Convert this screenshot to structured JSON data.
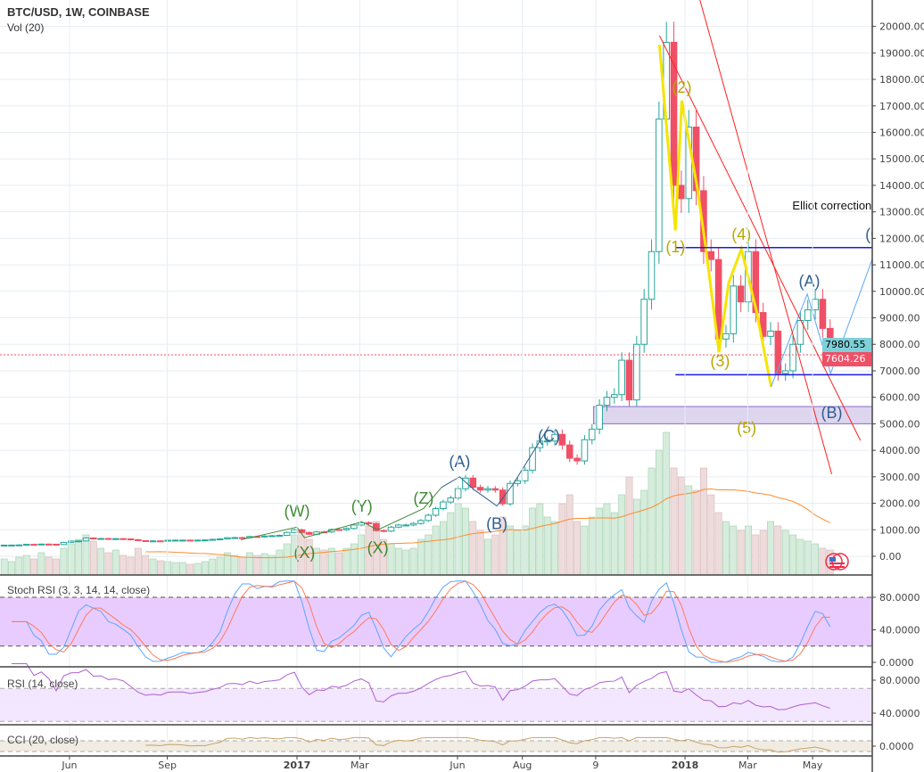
{
  "header": {
    "symbol": "BTC/USD, 1W, COINBASE",
    "volume_label": "Vol (20)"
  },
  "panels": {
    "stoch": "Stoch RSI (3, 3, 14, 14, close)",
    "rsi": "RSI (14, close)",
    "cci": "CCI (20, close)"
  },
  "price_tags": {
    "last_close": "7604.26",
    "last_color": "#ef5066",
    "line_value": "7980.55",
    "line_color": "#7fcfd8"
  },
  "colors": {
    "up": "#26a69a",
    "down": "#ef5066",
    "grid": "#e6edf3",
    "yellow": "#f5e400",
    "wave_green": "#3e8a33",
    "wave_blue": "#2f5f8f",
    "wave_yellow": "#b9a800",
    "channel": "#ff2020",
    "level": "#1a1ae0",
    "zone": "#d6cbeb",
    "stoch_k": "#5aa7ff",
    "stoch_d": "#ff7a59",
    "rsi": "#b05fd0",
    "cci": "#c8a46a",
    "vol_ma": "#ff8c2e"
  },
  "chart_data": {
    "type": "candlestick",
    "title": "BTC/USD, 1W, COINBASE",
    "interval": "1W",
    "first_week": "2016-03-28",
    "close": [
      420,
      422,
      428,
      450,
      445,
      460,
      455,
      443,
      525,
      575,
      580,
      690,
      660,
      670,
      650,
      665,
      655,
      625,
      590,
      570,
      580,
      575,
      605,
      608,
      608,
      600,
      610,
      617,
      638,
      655,
      700,
      705,
      700,
      745,
      735,
      765,
      775,
      790,
      900,
      1000,
      900,
      830,
      920,
      915,
      1010,
      1000,
      1050,
      1180,
      1270,
      1230,
      970,
      950,
      1100,
      1180,
      1180,
      1240,
      1350,
      1550,
      1800,
      2050,
      2200,
      2550,
      2950,
      2600,
      2500,
      2550,
      2500,
      1980,
      2750,
      2850,
      3250,
      4100,
      4350,
      4350,
      4600,
      4200,
      3700,
      3600,
      4400,
      4800,
      5700,
      6000,
      6100,
      7400,
      5900,
      8000,
      9700,
      11500,
      16500,
      19400,
      14000,
      13500,
      16200,
      13800,
      11500,
      11200,
      8200,
      8400,
      10200,
      9600,
      11500,
      9200,
      8300,
      8500,
      6900,
      7000,
      8000,
      8900,
      9300,
      9700,
      8600,
      7604.26
    ],
    "volume": [
      18,
      15,
      20,
      22,
      18,
      25,
      20,
      18,
      30,
      35,
      40,
      45,
      38,
      30,
      25,
      28,
      22,
      20,
      30,
      22,
      18,
      16,
      15,
      14,
      14,
      12,
      13,
      15,
      18,
      20,
      25,
      22,
      20,
      25,
      22,
      24,
      22,
      28,
      35,
      45,
      50,
      40,
      30,
      28,
      30,
      25,
      30,
      35,
      45,
      55,
      60,
      40,
      35,
      30,
      28,
      30,
      40,
      45,
      55,
      60,
      70,
      80,
      75,
      60,
      50,
      40,
      45,
      65,
      55,
      50,
      55,
      75,
      80,
      65,
      60,
      80,
      90,
      60,
      55,
      65,
      75,
      80,
      70,
      90,
      110,
      85,
      95,
      120,
      140,
      160,
      120,
      110,
      100,
      95,
      120,
      90,
      70,
      60,
      55,
      50,
      55,
      45,
      50,
      60,
      55,
      50,
      45,
      40,
      38,
      35,
      30,
      28
    ],
    "ylim": [
      0,
      21000
    ],
    "y_ticks": [
      "0.00",
      "1000.00",
      "2000.00",
      "3000.00",
      "4000.00",
      "5000.00",
      "6000.00",
      "7000.00",
      "8000.00",
      "9000.00",
      "10000.00",
      "11000.00",
      "12000.00",
      "13000.00",
      "14000.00",
      "15000.00",
      "16000.00",
      "17000.00",
      "18000.00",
      "19000.00",
      "20000.00"
    ],
    "x_ticks": [
      {
        "label": "Jun",
        "date": "2016-06-01"
      },
      {
        "label": "Sep",
        "date": "2016-09-01"
      },
      {
        "label": "2017",
        "date": "2017-01-01",
        "bold": true
      },
      {
        "label": "Mar",
        "date": "2017-03-01"
      },
      {
        "label": "Jun",
        "date": "2017-06-01"
      },
      {
        "label": "Aug",
        "date": "2017-08-01"
      },
      {
        "label": "9",
        "date": "2017-10-09"
      },
      {
        "label": "2018",
        "date": "2018-01-01",
        "bold": true
      },
      {
        "label": "Mar",
        "date": "2018-03-01"
      },
      {
        "label": "May",
        "date": "2018-05-01"
      }
    ],
    "stoch_ticks": [
      "80.0000",
      "40.0000",
      "0.0000"
    ],
    "rsi_ticks": [
      "80.0000",
      "40.0000"
    ],
    "cci_ticks": [
      "0.0000"
    ]
  },
  "annotations": {
    "text": "Elliot correction",
    "text_pos": {
      "date": "2018-04-12",
      "price": 13200
    },
    "labels": [
      {
        "text": "(W)",
        "date": "2017-01-01",
        "price": 1650,
        "color": "wave_green"
      },
      {
        "text": "(X)",
        "date": "2017-01-08",
        "price": 100,
        "color": "wave_green"
      },
      {
        "text": "(Y)",
        "date": "2017-03-03",
        "price": 1850,
        "color": "wave_green"
      },
      {
        "text": "(X)",
        "date": "2017-03-18",
        "price": 270,
        "color": "wave_green"
      },
      {
        "text": "(Z)",
        "date": "2017-04-30",
        "price": 2150,
        "color": "wave_green"
      },
      {
        "text": "(A)",
        "date": "2017-06-03",
        "price": 3530,
        "color": "wave_blue"
      },
      {
        "text": "(B)",
        "date": "2017-07-08",
        "price": 1180,
        "color": "wave_blue"
      },
      {
        "text": "(C)",
        "date": "2017-08-26",
        "price": 4500,
        "color": "wave_blue"
      },
      {
        "text": "(1)",
        "date": "2017-12-23",
        "price": 11640,
        "color": "wave_yellow"
      },
      {
        "text": "(2)",
        "date": "2017-12-29",
        "price": 17660,
        "color": "wave_yellow"
      },
      {
        "text": "(3)",
        "date": "2018-02-03",
        "price": 7330,
        "color": "wave_yellow"
      },
      {
        "text": "(4)",
        "date": "2018-02-23",
        "price": 12110,
        "color": "wave_yellow"
      },
      {
        "text": "(5)",
        "date": "2018-02-28",
        "price": 4810,
        "color": "wave_yellow"
      },
      {
        "text": "(A)",
        "date": "2018-04-28",
        "price": 10330,
        "color": "wave_blue"
      },
      {
        "text": "(B)",
        "date": "2018-05-19",
        "price": 5380,
        "color": "wave_blue"
      },
      {
        "text": "(C)",
        "date": "2018-06-30",
        "price": 12100,
        "color": "wave_blue"
      }
    ],
    "paths": [
      {
        "color": "wave_green",
        "width": 1,
        "points": [
          [
            "2016-11-09",
            620
          ],
          [
            "2017-01-01",
            1100
          ],
          [
            "2017-01-08",
            700
          ],
          [
            "2017-03-03",
            1300
          ],
          [
            "2017-03-18",
            1000
          ],
          [
            "2017-04-30",
            1800
          ],
          [
            "2017-05-17",
            2600
          ]
        ]
      },
      {
        "color": "wave_blue",
        "width": 1,
        "points": [
          [
            "2017-05-17",
            2600
          ],
          [
            "2017-06-03",
            3000
          ],
          [
            "2017-06-17",
            2500
          ],
          [
            "2017-07-08",
            1900
          ],
          [
            "2017-07-23",
            2700
          ],
          [
            "2017-08-26",
            4900
          ]
        ]
      },
      {
        "color": "yellow",
        "width": 3,
        "points": [
          [
            "2017-12-08",
            19300
          ],
          [
            "2017-12-23",
            12300
          ],
          [
            "2017-12-29",
            17200
          ],
          [
            "2018-01-13",
            13800
          ],
          [
            "2018-01-21",
            11500
          ],
          [
            "2018-02-02",
            7700
          ],
          [
            "2018-02-11",
            10300
          ],
          [
            "2018-02-23",
            11600
          ],
          [
            "2018-03-09",
            9300
          ],
          [
            "2018-03-23",
            6400
          ]
        ]
      },
      {
        "color": "stoch_k",
        "width": 1,
        "points": [
          [
            "2018-03-23",
            6400
          ],
          [
            "2018-04-26",
            9900
          ],
          [
            "2018-05-18",
            6900
          ],
          [
            "2018-06-26",
            11200
          ]
        ]
      },
      {
        "color": "channel",
        "width": 1,
        "points": [
          [
            "2018-01-15",
            21000
          ],
          [
            "2018-05-19",
            3100
          ]
        ]
      },
      {
        "color": "channel",
        "width": 1,
        "points": [
          [
            "2017-12-08",
            19650
          ],
          [
            "2018-06-15",
            4370
          ]
        ]
      },
      {
        "color": "level",
        "width": 1.5,
        "points": [
          [
            "2017-12-23",
            11650
          ],
          [
            "2018-06-30",
            11650
          ]
        ]
      },
      {
        "color": "level",
        "width": 1.5,
        "points": [
          [
            "2017-12-23",
            6850
          ],
          [
            "2018-06-30",
            6850
          ]
        ]
      },
      {
        "color": "line_color",
        "width": 1,
        "points": [
          [
            "2018-05-25",
            7980
          ],
          [
            "2018-06-30",
            7980
          ]
        ]
      }
    ],
    "zone": {
      "from_date": "2017-10-07",
      "low": 5000,
      "high": 5650
    }
  }
}
